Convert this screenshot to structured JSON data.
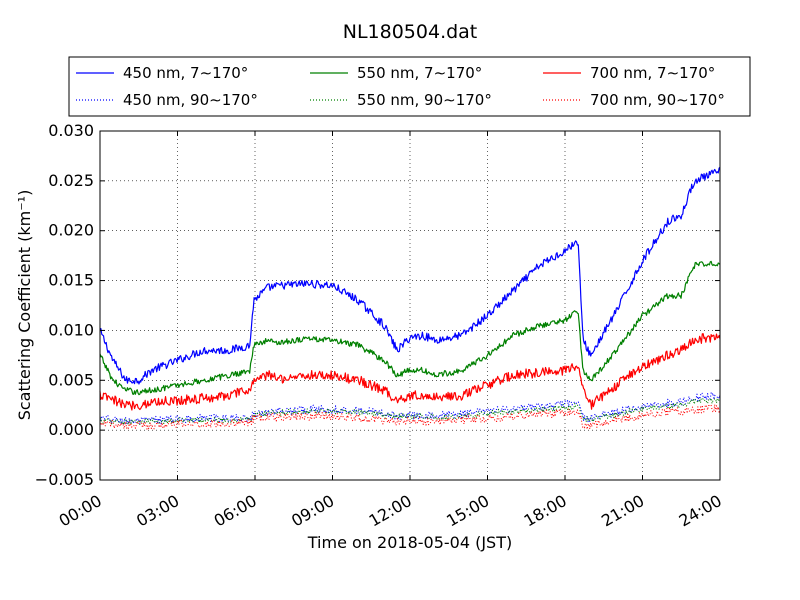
{
  "chart_data": {
    "type": "line",
    "title": "NL180504.dat",
    "xlabel": "Time on 2018-05-04 (JST)",
    "ylabel": "Scattering Coefficient (km⁻¹)",
    "xlim": [
      "00:00",
      "24:00"
    ],
    "ylim": [
      -0.005,
      0.03
    ],
    "x_ticks": [
      "00:00",
      "03:00",
      "06:00",
      "09:00",
      "12:00",
      "15:00",
      "18:00",
      "21:00",
      "24:00"
    ],
    "y_ticks": [
      "−0.005",
      "0.000",
      "0.005",
      "0.010",
      "0.015",
      "0.020",
      "0.025",
      "0.030"
    ],
    "grid": true,
    "legend_location": "top",
    "x_hours": [
      0,
      0.5,
      1,
      1.5,
      2,
      3,
      4,
      5,
      5.8,
      5.95,
      6.5,
      7,
      8,
      9,
      10,
      11,
      11.5,
      12,
      12.5,
      13,
      14,
      15,
      16,
      17,
      18,
      18.5,
      18.7,
      19,
      20,
      21,
      22,
      22.5,
      23,
      24
    ],
    "series": [
      {
        "name": "450 nm, 7∼170°",
        "color": "#0000ff",
        "style": "solid",
        "noise": 0.0004,
        "values": [
          0.01,
          0.007,
          0.005,
          0.005,
          0.006,
          0.007,
          0.008,
          0.008,
          0.0085,
          0.013,
          0.0143,
          0.0145,
          0.0147,
          0.0145,
          0.013,
          0.0105,
          0.008,
          0.0093,
          0.0095,
          0.009,
          0.0095,
          0.0115,
          0.014,
          0.0165,
          0.018,
          0.019,
          0.009,
          0.0075,
          0.012,
          0.017,
          0.021,
          0.0215,
          0.025,
          0.026
        ]
      },
      {
        "name": "450 nm, 90∼170°",
        "color": "#0000ff",
        "style": "dotted",
        "noise": 0.0004,
        "values": [
          0.0012,
          0.001,
          0.0009,
          0.0009,
          0.001,
          0.0011,
          0.0012,
          0.0012,
          0.0012,
          0.0016,
          0.0018,
          0.0019,
          0.0021,
          0.0021,
          0.002,
          0.0017,
          0.0014,
          0.0015,
          0.0015,
          0.0015,
          0.0016,
          0.0019,
          0.0021,
          0.0023,
          0.0026,
          0.0027,
          0.0013,
          0.0012,
          0.0018,
          0.0024,
          0.0027,
          0.0028,
          0.0033,
          0.0035
        ]
      },
      {
        "name": "550 nm, 7∼170°",
        "color": "#008000",
        "style": "solid",
        "noise": 0.0003,
        "values": [
          0.0075,
          0.005,
          0.004,
          0.0038,
          0.004,
          0.0045,
          0.005,
          0.0055,
          0.006,
          0.0085,
          0.009,
          0.0088,
          0.0092,
          0.009,
          0.0085,
          0.007,
          0.0055,
          0.006,
          0.006,
          0.0055,
          0.006,
          0.0075,
          0.0095,
          0.0105,
          0.011,
          0.012,
          0.006,
          0.005,
          0.008,
          0.0115,
          0.0135,
          0.0135,
          0.0165,
          0.0168
        ]
      },
      {
        "name": "550 nm, 90∼170°",
        "color": "#008000",
        "style": "dotted",
        "noise": 0.0003,
        "values": [
          0.001,
          0.0009,
          0.0008,
          0.0008,
          0.0009,
          0.001,
          0.001,
          0.001,
          0.0011,
          0.0015,
          0.0017,
          0.0018,
          0.0019,
          0.0019,
          0.0018,
          0.0015,
          0.0013,
          0.0014,
          0.0014,
          0.0013,
          0.0014,
          0.0017,
          0.0019,
          0.0021,
          0.0023,
          0.0024,
          0.0012,
          0.0011,
          0.0016,
          0.0021,
          0.0024,
          0.0025,
          0.0029,
          0.003
        ]
      },
      {
        "name": "700 nm, 7∼170°",
        "color": "#ff0000",
        "style": "solid",
        "noise": 0.0005,
        "values": [
          0.0035,
          0.003,
          0.0025,
          0.0025,
          0.0028,
          0.003,
          0.0032,
          0.0035,
          0.004,
          0.005,
          0.0055,
          0.0052,
          0.0055,
          0.0055,
          0.005,
          0.004,
          0.003,
          0.0035,
          0.0035,
          0.0033,
          0.0035,
          0.0045,
          0.0055,
          0.0058,
          0.006,
          0.0065,
          0.004,
          0.0025,
          0.0045,
          0.0065,
          0.0075,
          0.008,
          0.0092,
          0.0092
        ]
      },
      {
        "name": "700 nm, 90∼170°",
        "color": "#ff0000",
        "style": "dotted",
        "noise": 0.0004,
        "values": [
          0.0006,
          0.0006,
          0.0005,
          0.0005,
          0.0005,
          0.0006,
          0.0006,
          0.0007,
          0.0008,
          0.0012,
          0.0013,
          0.0013,
          0.0014,
          0.0014,
          0.0012,
          0.001,
          0.0008,
          0.0009,
          0.0009,
          0.0009,
          0.001,
          0.0012,
          0.0014,
          0.0016,
          0.0017,
          0.0018,
          0.0005,
          0.0004,
          0.001,
          0.0015,
          0.0018,
          0.0019,
          0.0021,
          0.0022
        ]
      }
    ]
  }
}
